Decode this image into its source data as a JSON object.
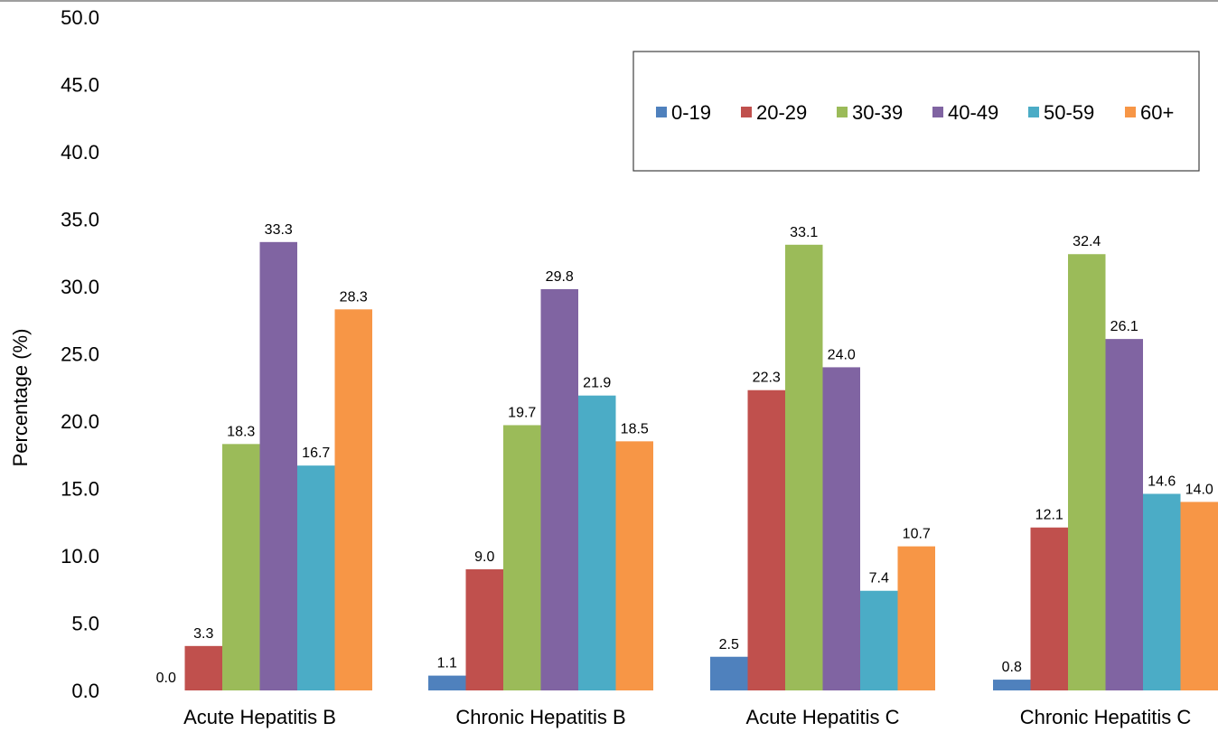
{
  "chart_data": {
    "type": "bar",
    "title": "",
    "xlabel": "",
    "ylabel": "Percentage (%)",
    "ylim": [
      0,
      50
    ],
    "y_ticks": [
      "0.0",
      "5.0",
      "10.0",
      "15.0",
      "20.0",
      "25.0",
      "30.0",
      "35.0",
      "40.0",
      "45.0",
      "50.0"
    ],
    "grid": false,
    "legend_position": "top-right",
    "categories": [
      "Acute Hepatitis B",
      "Chronic Hepatitis B",
      "Acute Hepatitis C",
      "Chronic Hepatitis C"
    ],
    "series": [
      {
        "name": "0-19",
        "color": "#4F81BD",
        "values": [
          0.0,
          1.1,
          2.5,
          0.8
        ],
        "labels": [
          "0.0",
          "1.1",
          "2.5",
          "0.8"
        ]
      },
      {
        "name": "20-29",
        "color": "#C0504D",
        "values": [
          3.3,
          9.0,
          22.3,
          12.1
        ],
        "labels": [
          "3.3",
          "9.0",
          "22.3",
          "12.1"
        ]
      },
      {
        "name": "30-39",
        "color": "#9BBB59",
        "values": [
          18.3,
          19.7,
          33.1,
          32.4
        ],
        "labels": [
          "18.3",
          "19.7",
          "33.1",
          "32.4"
        ]
      },
      {
        "name": "40-49",
        "color": "#8064A2",
        "values": [
          33.3,
          29.8,
          24.0,
          26.1
        ],
        "labels": [
          "33.3",
          "29.8",
          "24.0",
          "26.1"
        ]
      },
      {
        "name": "50-59",
        "color": "#4BACC6",
        "values": [
          16.7,
          21.9,
          7.4,
          14.6
        ],
        "labels": [
          "16.7",
          "21.9",
          "7.4",
          "14.6"
        ]
      },
      {
        "name": "60+",
        "color": "#F79646",
        "values": [
          28.3,
          18.5,
          10.7,
          14.0
        ],
        "labels": [
          "28.3",
          "18.5",
          "10.7",
          "14.0"
        ]
      }
    ]
  }
}
